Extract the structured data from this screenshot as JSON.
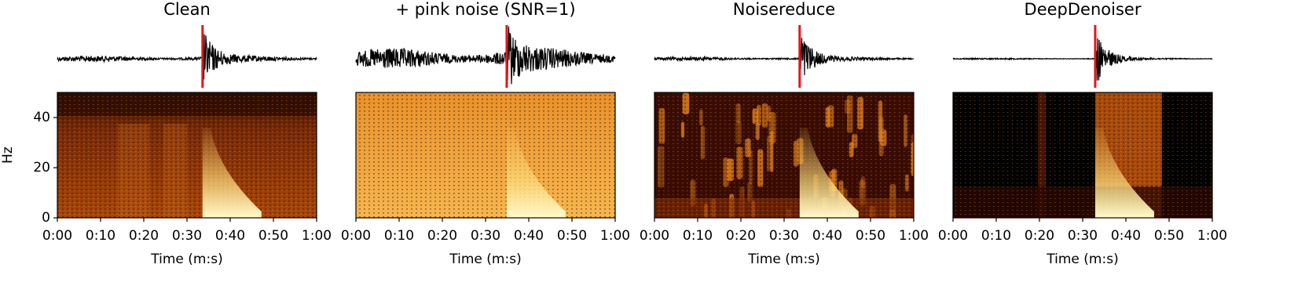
{
  "chart_data": [
    {
      "type": "spectrogram",
      "title": "Clean",
      "xlabel": "Time (m:s)",
      "ylabel": "Hz",
      "xlim": [
        0,
        60
      ],
      "ylim": [
        0,
        50
      ],
      "xticks": [
        {
          "value": 0,
          "label": "0:00"
        },
        {
          "value": 10,
          "label": "0:10"
        },
        {
          "value": 20,
          "label": "0:20"
        },
        {
          "value": 30,
          "label": "0:30"
        },
        {
          "value": 40,
          "label": "0:40"
        },
        {
          "value": 50,
          "label": "0:50"
        },
        {
          "value": 60,
          "label": "1:00"
        }
      ],
      "yticks": [
        0,
        20,
        40
      ],
      "marker_x": 33.6,
      "marker_color": "#e8141c"
    },
    {
      "type": "spectrogram",
      "title": "+ pink noise (SNR=1)",
      "xlabel": "Time (m:s)",
      "xlim": [
        0,
        60
      ],
      "ylim": [
        0,
        50
      ],
      "xticks": [
        {
          "value": 0,
          "label": "0:00"
        },
        {
          "value": 10,
          "label": "0:10"
        },
        {
          "value": 20,
          "label": "0:20"
        },
        {
          "value": 30,
          "label": "0:30"
        },
        {
          "value": 40,
          "label": "0:40"
        },
        {
          "value": 50,
          "label": "0:50"
        },
        {
          "value": 60,
          "label": "1:00"
        }
      ],
      "marker_x": 34.9,
      "marker_color": "#e8141c"
    },
    {
      "type": "spectrogram",
      "title": "Noisereduce",
      "xlabel": "Time (m:s)",
      "xlim": [
        0,
        60
      ],
      "ylim": [
        0,
        50
      ],
      "xticks": [
        {
          "value": 0,
          "label": "0:00"
        },
        {
          "value": 10,
          "label": "0:10"
        },
        {
          "value": 20,
          "label": "0:20"
        },
        {
          "value": 30,
          "label": "0:30"
        },
        {
          "value": 40,
          "label": "0:40"
        },
        {
          "value": 50,
          "label": "0:50"
        },
        {
          "value": 60,
          "label": "1:00"
        }
      ],
      "marker_x": 33.6,
      "marker_color": "#e8141c"
    },
    {
      "type": "spectrogram",
      "title": "DeepDenoiser",
      "xlabel": "Time (m:s)",
      "xlim": [
        0,
        60
      ],
      "ylim": [
        0,
        50
      ],
      "xticks": [
        {
          "value": 0,
          "label": "0:00"
        },
        {
          "value": 10,
          "label": "0:10"
        },
        {
          "value": 20,
          "label": "0:20"
        },
        {
          "value": 30,
          "label": "0:30"
        },
        {
          "value": 40,
          "label": "0:40"
        },
        {
          "value": 50,
          "label": "0:50"
        },
        {
          "value": 60,
          "label": "1:00"
        }
      ],
      "marker_x": 32.9,
      "marker_color": "#e8141c"
    }
  ]
}
